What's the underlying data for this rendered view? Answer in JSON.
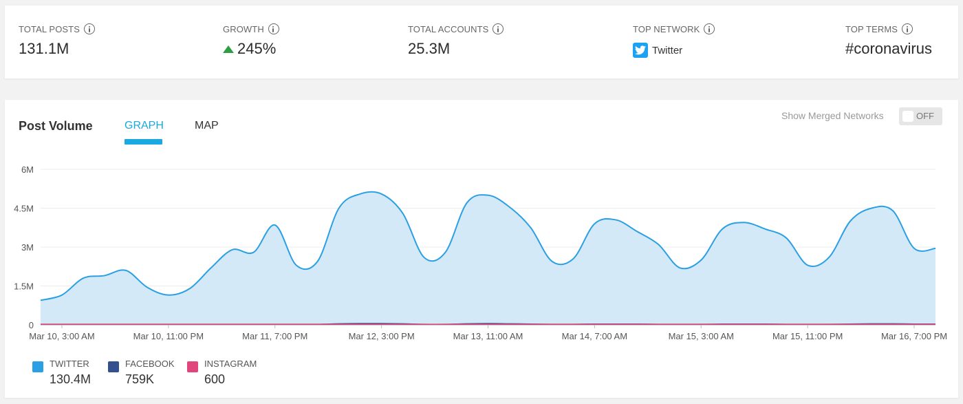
{
  "stats": [
    {
      "label": "TOTAL POSTS",
      "value": "131.1M"
    },
    {
      "label": "GROWTH",
      "value": "245%"
    },
    {
      "label": "TOTAL ACCOUNTS",
      "value": "25.3M"
    },
    {
      "label": "TOP NETWORK",
      "value": "Twitter"
    },
    {
      "label": "TOP TERMS",
      "value": "#coronavirus"
    }
  ],
  "panel": {
    "title": "Post Volume",
    "tabs": [
      "GRAPH",
      "MAP"
    ],
    "active_tab": "GRAPH",
    "merged_label": "Show Merged Networks",
    "merged_toggle": "OFF"
  },
  "legend": [
    {
      "name": "TWITTER",
      "value": "130.4M",
      "color": "#2a9fe3"
    },
    {
      "name": "FACEBOOK",
      "value": "759K",
      "color": "#34508f"
    },
    {
      "name": "INSTAGRAM",
      "value": "600",
      "color": "#e0457b"
    }
  ],
  "colors": {
    "accent": "#1aa9e0",
    "growth_up": "#2e9e44",
    "twitter_line": "#2a9fe3",
    "twitter_fill": "#d3e9f8",
    "facebook_line": "#34508f",
    "instagram_line": "#d94a7a"
  },
  "chart_data": {
    "type": "area",
    "ylim": [
      0,
      6
    ],
    "y_unit": "M",
    "y_ticks": [
      "0",
      "1.5M",
      "3M",
      "4.5M",
      "6M"
    ],
    "x_ticks": [
      "Mar 10, 3:00 AM",
      "Mar 10, 11:00 PM",
      "Mar 11, 7:00 PM",
      "Mar 12, 3:00 PM",
      "Mar 13, 11:00 AM",
      "Mar 14, 7:00 AM",
      "Mar 15, 3:00 AM",
      "Mar 15, 11:00 PM",
      "Mar 16, 7:00 PM"
    ],
    "x_hours": [
      -4,
      0,
      4,
      8,
      12,
      16,
      20,
      24,
      28,
      32,
      36,
      40,
      44,
      48,
      52,
      56,
      60,
      64,
      68,
      72,
      76,
      80,
      84,
      88,
      92,
      96,
      100,
      104,
      108,
      112,
      116,
      120,
      124,
      128,
      132,
      136,
      140,
      144,
      148,
      152,
      156,
      160,
      164
    ],
    "series": [
      {
        "name": "TWITTER",
        "values": [
          0.95,
          1.15,
          1.8,
          1.9,
          2.1,
          1.45,
          1.15,
          1.4,
          2.2,
          2.9,
          2.8,
          3.85,
          2.3,
          2.45,
          4.5,
          5.05,
          5.05,
          4.3,
          2.6,
          2.8,
          4.7,
          5.0,
          4.55,
          3.75,
          2.45,
          2.55,
          3.9,
          4.05,
          3.6,
          3.1,
          2.2,
          2.5,
          3.7,
          3.95,
          3.7,
          3.35,
          2.3,
          2.6,
          4.0,
          4.5,
          4.4,
          2.95,
          2.95
        ]
      },
      {
        "name": "FACEBOOK",
        "values": [
          0.01,
          0.01,
          0.01,
          0.01,
          0.01,
          0.01,
          0.01,
          0.01,
          0.01,
          0.01,
          0.01,
          0.01,
          0.01,
          0.01,
          0.03,
          0.04,
          0.04,
          0.03,
          0.01,
          0.01,
          0.03,
          0.04,
          0.03,
          0.02,
          0.01,
          0.01,
          0.02,
          0.02,
          0.02,
          0.01,
          0.01,
          0.01,
          0.02,
          0.02,
          0.02,
          0.01,
          0.01,
          0.01,
          0.02,
          0.03,
          0.03,
          0.02,
          0.02
        ]
      },
      {
        "name": "INSTAGRAM",
        "values": [
          0.01,
          0.01,
          0.01,
          0.01,
          0.01,
          0.01,
          0.01,
          0.01,
          0.01,
          0.01,
          0.01,
          0.01,
          0.01,
          0.01,
          0.01,
          0.01,
          0.01,
          0.01,
          0.01,
          0.01,
          0.01,
          0.01,
          0.01,
          0.01,
          0.01,
          0.01,
          0.01,
          0.01,
          0.01,
          0.01,
          0.01,
          0.01,
          0.01,
          0.01,
          0.01,
          0.01,
          0.01,
          0.01,
          0.01,
          0.01,
          0.01,
          0.01,
          0.01
        ]
      }
    ],
    "grid": true,
    "legend_position": "bottom-left"
  }
}
